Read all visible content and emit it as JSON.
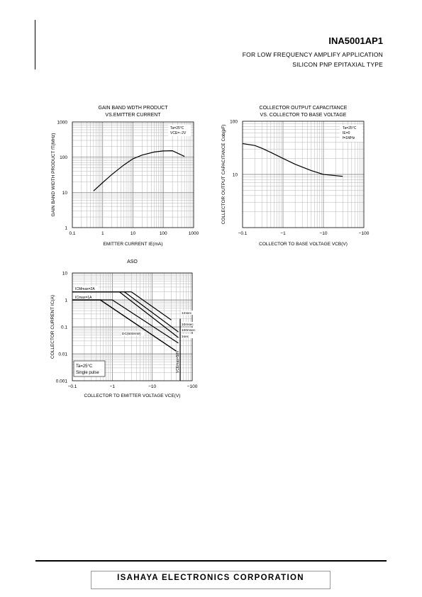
{
  "header": {
    "part_number": "INA5001AP1",
    "application": "FOR LOW FREQUENCY AMPLIFY APPLICATION",
    "type": "SILICON PNP EPITAXIAL TYPE"
  },
  "footer": {
    "company": "ISAHAYA ELECTRONICS CORPORATION"
  },
  "colors": {
    "line": "#000000",
    "grid": "#b4b4b4"
  },
  "chart_data": [
    {
      "type": "line",
      "title_lines": [
        "GAIN BAND WDTH PRODUCT",
        "VS.EMITTER CURRENT"
      ],
      "xlabel": "EMITTER CURRENT  IE(mA)",
      "ylabel": "GAIN BAND WIDTH PRODUCT  fT(MHz)",
      "x_scale": "log",
      "y_scale": "log",
      "xlim": [
        0.1,
        1000
      ],
      "ylim": [
        1,
        1000
      ],
      "x_ticks": [
        "0.1",
        "1",
        "10",
        "100",
        "1000"
      ],
      "y_ticks": [
        "1",
        "10",
        "100",
        "1000"
      ],
      "annotations": [
        "Ta=25°C",
        "VCE=−2V"
      ],
      "series": [
        {
          "x": [
            0.5,
            1,
            2,
            5,
            10,
            20,
            50,
            100,
            200,
            500
          ],
          "y": [
            11,
            19,
            32,
            60,
            90,
            115,
            140,
            150,
            152,
            105
          ]
        }
      ]
    },
    {
      "type": "line",
      "title_lines": [
        "COLLECTOR OUTPUT CAPACITANCE",
        "VS. COLLECTOR TO BASE VOLTAGE"
      ],
      "xlabel": "COLLECTOR TO BASE VOLTAGE  VCB(V)",
      "ylabel": "COLLECTOR OUTPUT CAPACITANCE  Cob(pF)",
      "x_scale": "log",
      "y_scale": "log",
      "xlim": [
        0.1,
        100
      ],
      "ylim": [
        1,
        100
      ],
      "x_ticks": [
        "−0.1",
        "−1",
        "−10",
        "−100"
      ],
      "y_ticks": [
        "10",
        "100"
      ],
      "annotations": [
        "Ta=25°C",
        "IE=0",
        "f=1MHz"
      ],
      "series": [
        {
          "x": [
            0.1,
            0.2,
            0.3,
            0.5,
            1,
            2,
            5,
            10,
            20,
            30
          ],
          "y": [
            38,
            35,
            31,
            26,
            20,
            15.5,
            11.8,
            10,
            9.5,
            9.2
          ]
        }
      ]
    },
    {
      "type": "line",
      "title_lines": [
        "ASO"
      ],
      "xlabel": "COLLECTOR TO EMITTER VOLTAGE  VCE(V)",
      "ylabel": "COLLECTOR CURRENT  IC(A)",
      "x_scale": "log",
      "y_scale": "log",
      "xlim": [
        0.1,
        100
      ],
      "ylim": [
        0.001,
        10
      ],
      "x_ticks": [
        "−0.1",
        "−1",
        "−10",
        "−100"
      ],
      "y_ticks": [
        "10",
        "1",
        "0.1",
        "0.01",
        "0.001"
      ],
      "annotations": [
        "Ta=25°C",
        "Single pulse",
        "VCEmax=50V"
      ],
      "limit_labels": [
        "ICMmax=2A",
        "ICmax=1A"
      ],
      "series": [
        {
          "name": "1msec",
          "x": [
            0.1,
            3,
            30
          ],
          "y": [
            2,
            2,
            0.18
          ]
        },
        {
          "name": "10msec",
          "x": [
            0.1,
            2,
            45
          ],
          "y": [
            2,
            2,
            0.065
          ]
        },
        {
          "name": "100msec",
          "x": [
            0.1,
            1.5,
            45
          ],
          "y": [
            2,
            2,
            0.04
          ]
        },
        {
          "name": "1sec",
          "x": [
            0.1,
            1,
            45
          ],
          "y": [
            1,
            1,
            0.025
          ]
        },
        {
          "name": "DC(500mW)",
          "x": [
            0.1,
            0.5,
            40
          ],
          "y": [
            1,
            1,
            0.0125
          ]
        }
      ]
    }
  ]
}
